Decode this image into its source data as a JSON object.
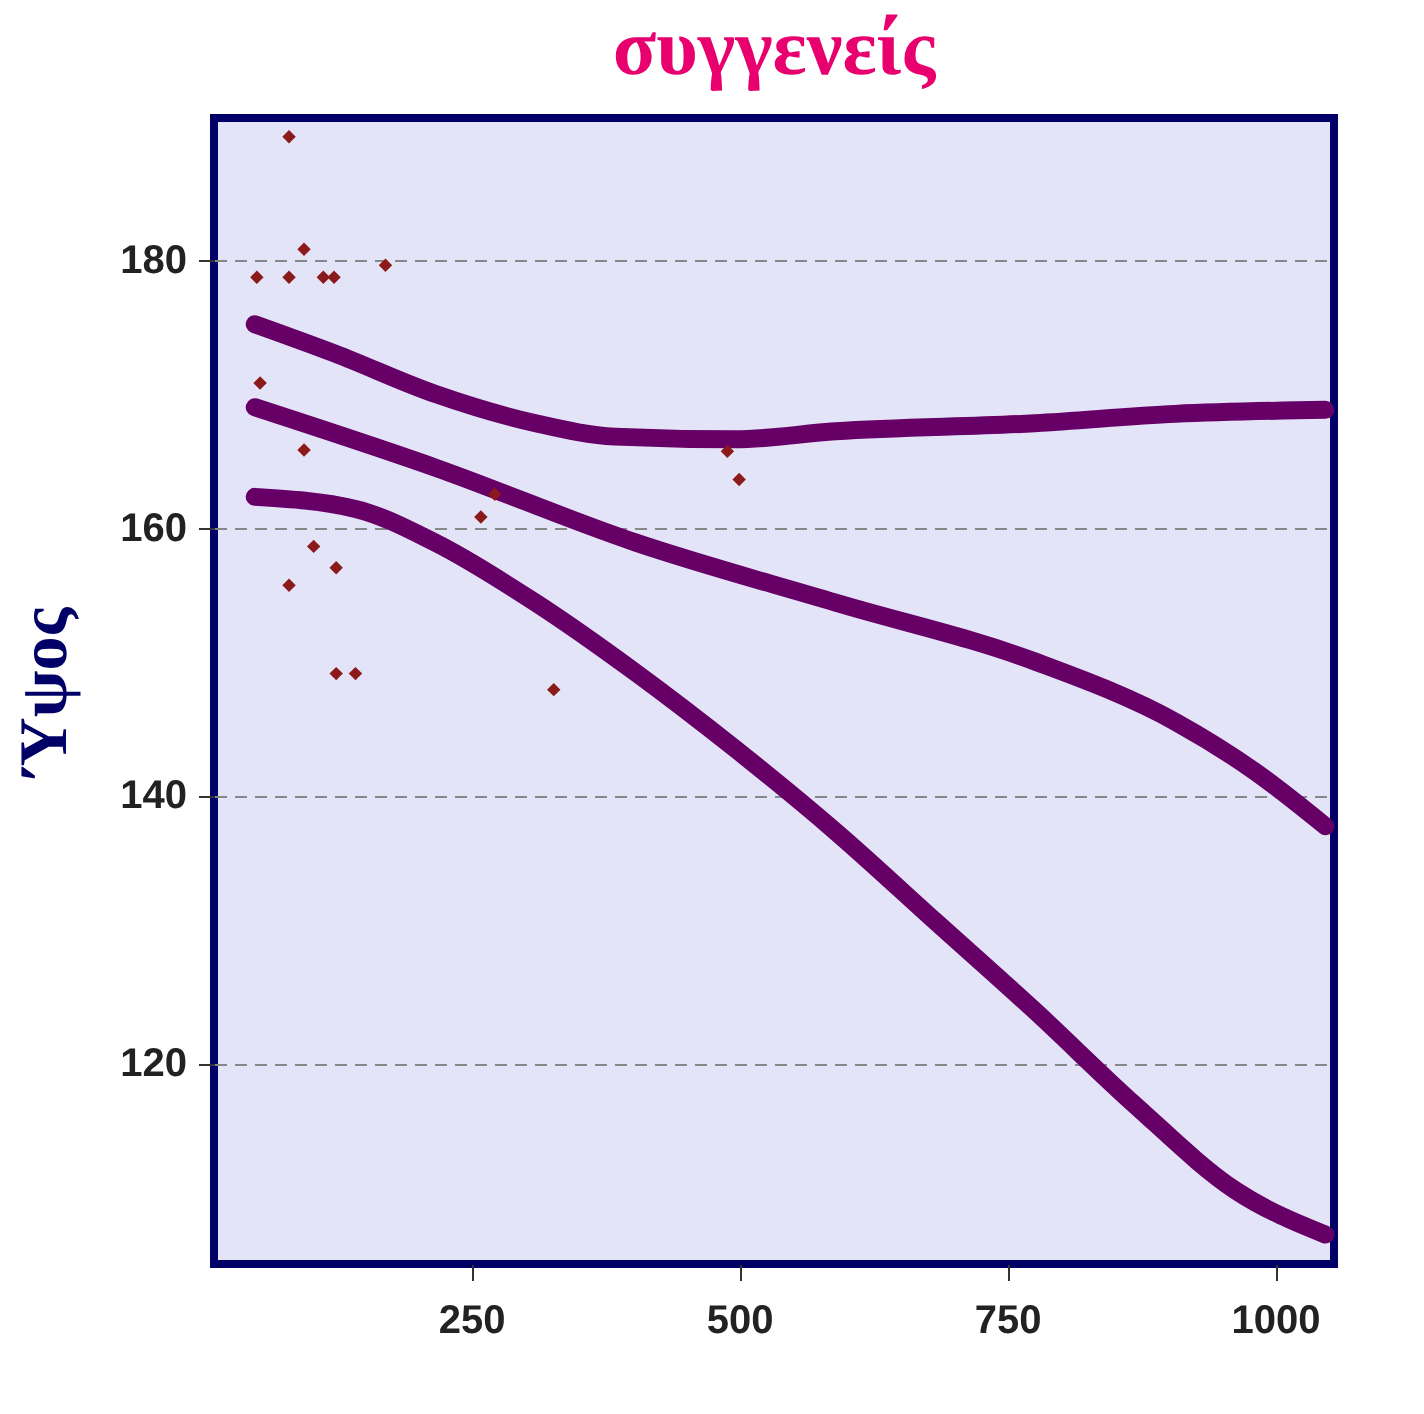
{
  "chart_data": {
    "type": "line",
    "title": "συγγενείς",
    "ylabel": "Ύψος",
    "xlim": [
      10,
      1055
    ],
    "ylim": [
      105,
      190.6
    ],
    "xticks": [
      250,
      500,
      750,
      1000
    ],
    "yticks": [
      120,
      140,
      160,
      180
    ],
    "grid": "y",
    "line_style": "solid",
    "series": [
      {
        "type": "scatter",
        "marker": "diamond",
        "color": "#8b1a1a",
        "x": [
          80,
          94,
          50,
          80,
          112,
          122,
          170,
          53,
          94,
          259,
          272,
          103,
          124,
          80,
          124,
          142,
          327,
          489,
          500
        ],
        "values": [
          189.2,
          180.8,
          178.7,
          178.7,
          178.7,
          178.7,
          179.6,
          170.8,
          165.8,
          160.8,
          162.5,
          158.6,
          157,
          155.7,
          149.1,
          149.1,
          147.9,
          165.7,
          163.6
        ]
      },
      {
        "marker": "none",
        "color": "#660066",
        "x": [
          48,
          123,
          216,
          310,
          384,
          496,
          590,
          776,
          907,
          1047
        ],
        "values": [
          175.2,
          173,
          170,
          167.8,
          166.8,
          166.6,
          167.2,
          167.8,
          168.5,
          168.8
        ]
      },
      {
        "marker": "none",
        "color": "#660066",
        "x": [
          48,
          216,
          403,
          590,
          776,
          907,
          981,
          1047
        ],
        "values": [
          169,
          164.5,
          158.9,
          154.4,
          150,
          145.5,
          141.8,
          137.7
        ]
      },
      {
        "marker": "none",
        "color": "#660066",
        "x": [
          48,
          142,
          216,
          310,
          403,
          496,
          590,
          683,
          776,
          869,
          963,
          1047
        ],
        "values": [
          162.3,
          161.4,
          158.9,
          154.4,
          149.2,
          143.5,
          137.3,
          130.6,
          123.9,
          116.9,
          110.5,
          107.2
        ]
      }
    ]
  }
}
